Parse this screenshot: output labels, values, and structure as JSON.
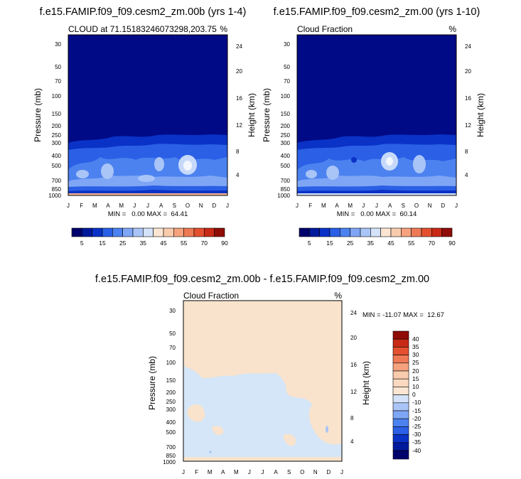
{
  "colors": {
    "dark_blue": "#000a86",
    "panel_bg": "#f9e3cd",
    "diff_blue": "#d4e6f7"
  },
  "chart_data": [
    {
      "type": "heatmap",
      "title": "f.e15.FAMIP.f09_f09.cesm2_zm.00b (yrs 1-4)",
      "left_subtitle": "CLOUD at 71.15183246073298,203.75",
      "right_subtitle": "%",
      "ylabel": "Pressure (mb)",
      "ylabel_right": "Height (km)",
      "x_ticks": [
        "J",
        "F",
        "M",
        "A",
        "M",
        "J",
        "J",
        "A",
        "S",
        "O",
        "N",
        "D",
        "J"
      ],
      "y_ticks": [
        30,
        50,
        70,
        100,
        150,
        200,
        250,
        300,
        400,
        500,
        700,
        850,
        1000
      ],
      "ylim": [
        1000,
        25
      ],
      "height_ticks": [
        4,
        8,
        12,
        16,
        20,
        24
      ],
      "stats": "MIN =   0.00 MAX =  64.41",
      "min": 0.0,
      "max": 64.41,
      "colorbar_levels": [
        5,
        10,
        15,
        20,
        25,
        30,
        35,
        40,
        45,
        50,
        55,
        60,
        70,
        80,
        90
      ],
      "colorbar_labels": [
        "5",
        "15",
        "25",
        "35",
        "45",
        "55",
        "70",
        "90"
      ]
    },
    {
      "type": "heatmap",
      "title": "f.e15.FAMIP.f09_f09.cesm2_zm.00 (yrs 1-10)",
      "left_subtitle": "Cloud Fraction",
      "right_subtitle": "%",
      "ylabel": "Pressure (mb)",
      "ylabel_right": "Height (km)",
      "x_ticks": [
        "J",
        "F",
        "M",
        "A",
        "M",
        "J",
        "J",
        "A",
        "S",
        "O",
        "N",
        "D",
        "J"
      ],
      "y_ticks": [
        30,
        50,
        70,
        100,
        150,
        200,
        250,
        300,
        400,
        500,
        700,
        850,
        1000
      ],
      "ylim": [
        1000,
        25
      ],
      "height_ticks": [
        4,
        8,
        12,
        16,
        20,
        24
      ],
      "stats": "MIN =   0.00 MAX =  60.14",
      "min": 0.0,
      "max": 60.14,
      "colorbar_levels": [
        5,
        10,
        15,
        20,
        25,
        30,
        35,
        40,
        45,
        50,
        55,
        60,
        70,
        80,
        90
      ],
      "colorbar_labels": [
        "5",
        "15",
        "25",
        "35",
        "45",
        "55",
        "70",
        "90"
      ]
    },
    {
      "type": "heatmap",
      "title": "f.e15.FAMIP.f09_f09.cesm2_zm.00b - f.e15.FAMIP.f09_f09.cesm2_zm.00",
      "left_subtitle": "Cloud Fraction",
      "right_subtitle": "%",
      "ylabel": "Pressure (mb)",
      "ylabel_right": "Height (km)",
      "x_ticks": [
        "J",
        "F",
        "M",
        "A",
        "M",
        "J",
        "J",
        "A",
        "S",
        "O",
        "N",
        "D",
        "J"
      ],
      "y_ticks": [
        30,
        50,
        70,
        100,
        150,
        200,
        250,
        300,
        400,
        500,
        700,
        850,
        1000
      ],
      "ylim": [
        1000,
        25
      ],
      "height_ticks": [
        4,
        8,
        12,
        16,
        20,
        24
      ],
      "stats": "MIN = -11.07 MAX =  12.67",
      "min": -11.07,
      "max": 12.67,
      "colorbar_levels": [
        40,
        35,
        30,
        25,
        20,
        15,
        10,
        0,
        -10,
        -15,
        -20,
        -25,
        -30,
        -35,
        -40
      ],
      "colorbar_labels": [
        "40",
        "35",
        "30",
        "25",
        "20",
        "15",
        "10",
        "0",
        "-10",
        "-15",
        "-20",
        "-25",
        "-30",
        "-35",
        "-40"
      ]
    }
  ]
}
